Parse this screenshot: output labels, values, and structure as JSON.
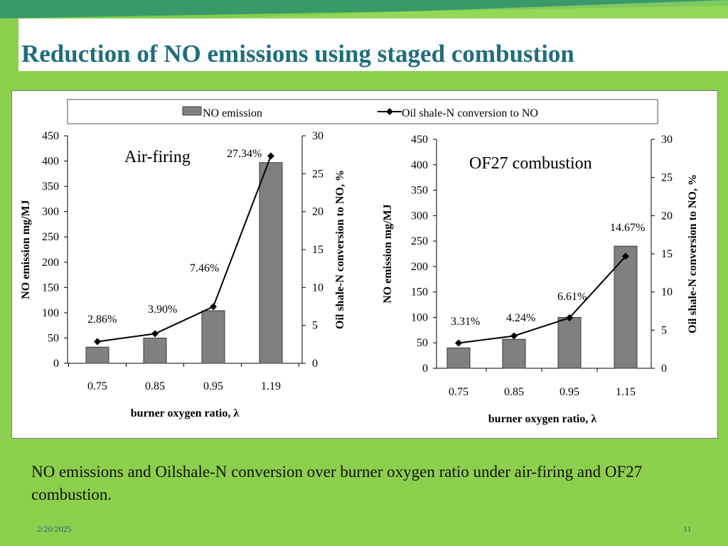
{
  "slide": {
    "title": "Reduction of NO emissions using staged combustion",
    "caption": "NO emissions and Oilshale-N conversion over burner oxygen ratio under air-firing and OF27 combustion.",
    "date": "2/20/2025",
    "page_number": "11"
  },
  "colors": {
    "background": "#8ccf4d",
    "title_text": "#1f6e7c",
    "top_band_dark": "#2e8f6e",
    "top_band_light": "#7fcf4a",
    "bar_fill": "#808080",
    "line": "#000000"
  },
  "legend": {
    "bar_label": "NO emission",
    "line_label": "Oil shale-N conversion to NO"
  },
  "chart_data": [
    {
      "type": "bar+line",
      "annotation": "Air-firing",
      "categories": [
        "0.75",
        "0.85",
        "0.95",
        "1.19"
      ],
      "xlabel": "burner oxygen ratio, λ",
      "ylabel": "NO emission  mg/MJ",
      "y2label": "Oil shale-N  conversion to NO, %",
      "ylim": [
        0,
        450
      ],
      "y_ticks": [
        "0",
        "50",
        "100",
        "150",
        "200",
        "250",
        "300",
        "350",
        "400",
        "450"
      ],
      "y2lim": [
        0,
        30
      ],
      "y2_ticks": [
        "0",
        "5",
        "10",
        "15",
        "20",
        "25",
        "30"
      ],
      "series": [
        {
          "name": "NO emission",
          "type": "bar",
          "values": [
            32,
            50,
            104,
            397
          ]
        },
        {
          "name": "Oil shale-N conversion to NO",
          "type": "line",
          "values": [
            2.86,
            3.9,
            7.46,
            27.34
          ],
          "labels": [
            "2.86%",
            "3.90%",
            "7.46%",
            "27.34%"
          ]
        }
      ],
      "grid": false
    },
    {
      "type": "bar+line",
      "annotation": "OF27 combustion",
      "categories": [
        "0.75",
        "0.85",
        "0.95",
        "1.15"
      ],
      "xlabel": "burner oxygen ratio, λ",
      "ylabel": "NO emission  mg/MJ",
      "y2label": "Oil shale-N  conversion to NO, %",
      "ylim": [
        0,
        450
      ],
      "y_ticks": [
        "0",
        "50",
        "100",
        "150",
        "200",
        "250",
        "300",
        "350",
        "400",
        "450"
      ],
      "y2lim": [
        0,
        30
      ],
      "y2_ticks": [
        "0",
        "5",
        "10",
        "15",
        "20",
        "25",
        "30"
      ],
      "series": [
        {
          "name": "NO emission",
          "type": "bar",
          "values": [
            40,
            57,
            100,
            240
          ]
        },
        {
          "name": "Oil shale-N conversion to NO",
          "type": "line",
          "values": [
            3.31,
            4.24,
            6.61,
            14.67
          ],
          "labels": [
            "3.31%",
            "4.24%",
            "6.61%",
            "14.67%"
          ]
        }
      ],
      "grid": false
    }
  ]
}
